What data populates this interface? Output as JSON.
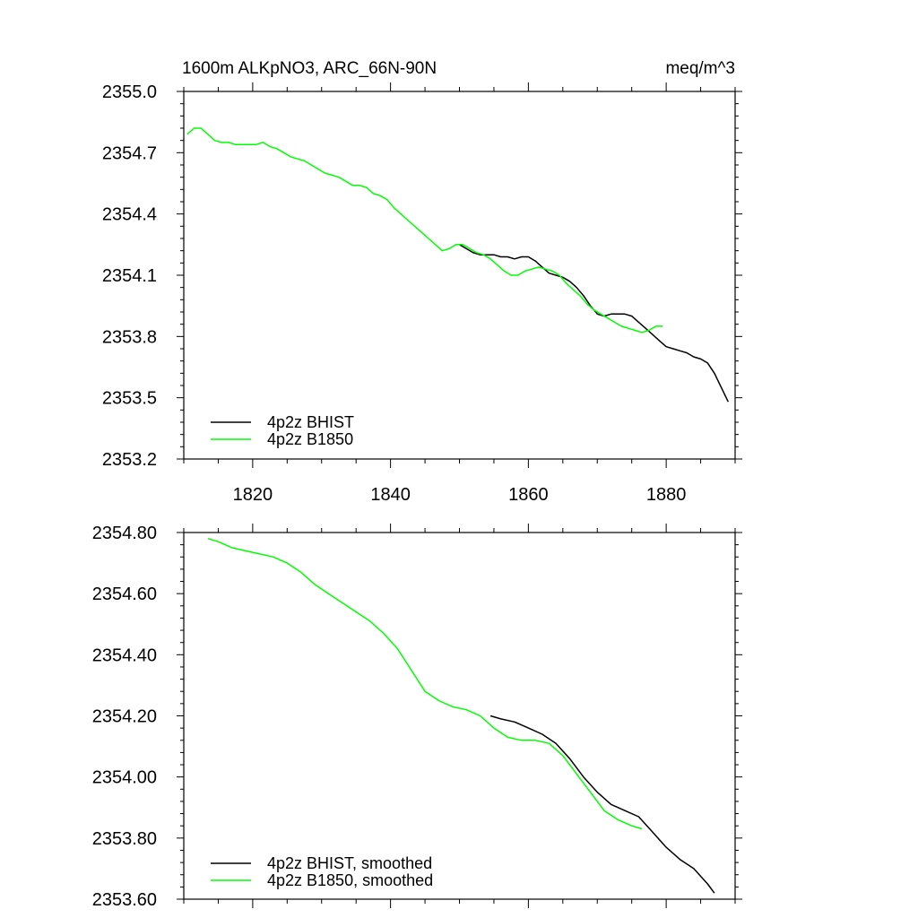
{
  "colors": {
    "bhist": "#000000",
    "b1850": "#00ff00"
  },
  "chart_data": [
    {
      "type": "line",
      "title": "1600m ALKpNO3, ARC_66N-90N",
      "units": "meq/m^3",
      "xlim": [
        1810,
        1890
      ],
      "ylim": [
        2353.2,
        2355.0
      ],
      "xticks": [
        1820,
        1840,
        1860,
        1880
      ],
      "xtick_labels": [
        "1820",
        "1840",
        "1860",
        "1880"
      ],
      "yticks": [
        2353.2,
        2353.5,
        2353.8,
        2354.1,
        2354.4,
        2354.7,
        2355.0
      ],
      "ytick_labels": [
        "2353.2",
        "2353.5",
        "2353.8",
        "2354.1",
        "2354.4",
        "2354.7",
        "2355.0"
      ],
      "legend_position": "bottom-left",
      "series": [
        {
          "name": "4p2z BHIST",
          "color_key": "bhist",
          "x": [
            1850,
            1851,
            1852,
            1853,
            1854,
            1855,
            1856,
            1857,
            1858,
            1859,
            1860,
            1861,
            1862,
            1863,
            1864,
            1865,
            1866,
            1867,
            1868,
            1869,
            1870,
            1871,
            1872,
            1873,
            1874,
            1875,
            1876,
            1877,
            1878,
            1879,
            1880,
            1881,
            1882,
            1883,
            1884,
            1885,
            1886,
            1887,
            1888,
            1889
          ],
          "y": [
            2354.25,
            2354.23,
            2354.21,
            2354.2,
            2354.2,
            2354.2,
            2354.19,
            2354.19,
            2354.18,
            2354.19,
            2354.19,
            2354.17,
            2354.14,
            2354.11,
            2354.1,
            2354.09,
            2354.07,
            2354.04,
            2354.0,
            2353.95,
            2353.91,
            2353.9,
            2353.91,
            2353.91,
            2353.91,
            2353.9,
            2353.87,
            2353.84,
            2353.81,
            2353.78,
            2353.75,
            2353.74,
            2353.73,
            2353.72,
            2353.7,
            2353.69,
            2353.67,
            2353.62,
            2353.55,
            2353.48
          ]
        },
        {
          "name": "4p2z B1850",
          "color_key": "b1850",
          "x": [
            1810.5,
            1811.5,
            1812.5,
            1813.5,
            1814.5,
            1815.5,
            1816.5,
            1817.5,
            1818.5,
            1819.5,
            1820.5,
            1821.5,
            1822.5,
            1823.5,
            1824.5,
            1825.5,
            1826.5,
            1827.5,
            1828.5,
            1829.5,
            1830.5,
            1831.5,
            1832.5,
            1833.5,
            1834.5,
            1835.5,
            1836.5,
            1837.5,
            1838.5,
            1839.5,
            1840.5,
            1841.5,
            1842.5,
            1843.5,
            1844.5,
            1845.5,
            1846.5,
            1847.5,
            1848.5,
            1849.5,
            1850.5,
            1851.5,
            1852.5,
            1853.5,
            1854.5,
            1855.5,
            1856.5,
            1857.5,
            1858.5,
            1859.5,
            1860.5,
            1861.5,
            1862.5,
            1863.5,
            1864.5,
            1865.5,
            1866.5,
            1867.5,
            1868.5,
            1869.5,
            1870.5,
            1871.5,
            1872.5,
            1873.5,
            1874.5,
            1875.5,
            1876.5,
            1877.5,
            1878.5,
            1879.5
          ],
          "y": [
            2354.79,
            2354.82,
            2354.82,
            2354.79,
            2354.76,
            2354.75,
            2354.75,
            2354.74,
            2354.74,
            2354.74,
            2354.74,
            2354.75,
            2354.73,
            2354.72,
            2354.7,
            2354.68,
            2354.67,
            2354.66,
            2354.64,
            2354.62,
            2354.6,
            2354.59,
            2354.58,
            2354.56,
            2354.54,
            2354.54,
            2354.53,
            2354.5,
            2354.49,
            2354.47,
            2354.43,
            2354.4,
            2354.37,
            2354.34,
            2354.31,
            2354.28,
            2354.25,
            2354.22,
            2354.23,
            2354.25,
            2354.25,
            2354.23,
            2354.21,
            2354.2,
            2354.18,
            2354.15,
            2354.12,
            2354.1,
            2354.1,
            2354.12,
            2354.13,
            2354.14,
            2354.13,
            2354.12,
            2354.1,
            2354.06,
            2354.03,
            2354.0,
            2353.96,
            2353.93,
            2353.91,
            2353.89,
            2353.87,
            2353.85,
            2353.84,
            2353.83,
            2353.82,
            2353.83,
            2353.85,
            2353.85
          ]
        }
      ]
    },
    {
      "type": "line",
      "xlim": [
        1810,
        1890
      ],
      "ylim": [
        2353.6,
        2354.8
      ],
      "xticks": [
        1820,
        1840,
        1860,
        1880
      ],
      "xtick_labels": [],
      "yticks": [
        2353.6,
        2353.8,
        2354.0,
        2354.2,
        2354.4,
        2354.6,
        2354.8
      ],
      "ytick_labels": [
        "2353.60",
        "2353.80",
        "2354.00",
        "2354.20",
        "2354.40",
        "2354.60",
        "2354.80"
      ],
      "legend_position": "bottom-left",
      "series": [
        {
          "name": "4p2z BHIST, smoothed",
          "color_key": "bhist",
          "x": [
            1854.5,
            1856,
            1858,
            1860,
            1862,
            1864,
            1866,
            1868,
            1870,
            1872,
            1874,
            1876,
            1878,
            1880,
            1882,
            1884,
            1886,
            1887
          ],
          "y": [
            2354.2,
            2354.19,
            2354.18,
            2354.16,
            2354.14,
            2354.11,
            2354.06,
            2354.0,
            2353.95,
            2353.91,
            2353.89,
            2353.87,
            2353.82,
            2353.77,
            2353.73,
            2353.7,
            2353.65,
            2353.62
          ]
        },
        {
          "name": "4p2z B1850, smoothed",
          "color_key": "b1850",
          "x": [
            1813.5,
            1815,
            1817,
            1819,
            1821,
            1823,
            1825,
            1827,
            1829,
            1831,
            1833,
            1835,
            1837,
            1839,
            1841,
            1843,
            1845,
            1847,
            1849,
            1851,
            1853,
            1855,
            1857,
            1859,
            1861,
            1863,
            1865,
            1867,
            1869,
            1871,
            1873,
            1875,
            1876.5
          ],
          "y": [
            2354.78,
            2354.77,
            2354.75,
            2354.74,
            2354.73,
            2354.72,
            2354.7,
            2354.67,
            2354.63,
            2354.6,
            2354.57,
            2354.54,
            2354.51,
            2354.47,
            2354.42,
            2354.35,
            2354.28,
            2354.25,
            2354.23,
            2354.22,
            2354.2,
            2354.16,
            2354.13,
            2354.12,
            2354.12,
            2354.11,
            2354.07,
            2354.01,
            2353.95,
            2353.89,
            2353.86,
            2353.84,
            2353.83
          ]
        }
      ]
    }
  ]
}
